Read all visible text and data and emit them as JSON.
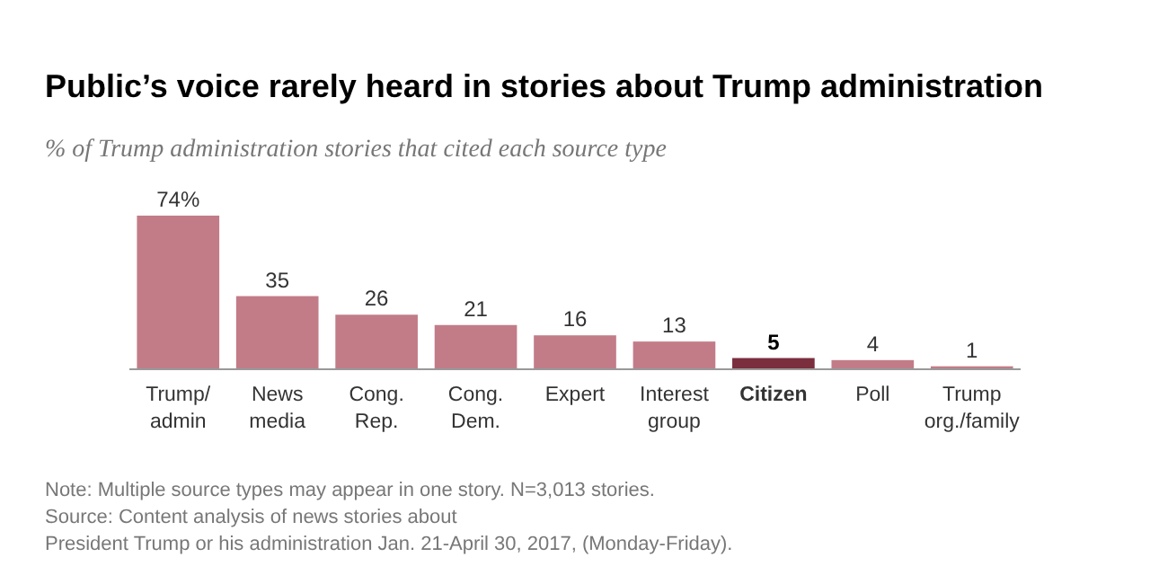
{
  "chart_data": {
    "type": "bar",
    "title": "Public’s voice rarely heard in stories about Trump administration",
    "subtitle": "% of Trump administration stories that cited each source type",
    "categories": [
      "Trump/\nadmin",
      "News\nmedia",
      "Cong.\nRep.",
      "Cong.\nDem.",
      "Expert",
      "Interest\ngroup",
      "Citizen",
      "Poll",
      "Trump\norg./family"
    ],
    "values": [
      74,
      35,
      26,
      21,
      16,
      13,
      5,
      4,
      1
    ],
    "value_labels": [
      "74%",
      "35",
      "26",
      "21",
      "16",
      "13",
      "5",
      "4",
      "1"
    ],
    "colors": [
      "#c27c88",
      "#c27c88",
      "#c27c88",
      "#c27c88",
      "#c27c88",
      "#c27c88",
      "#7a2e3e",
      "#c27c88",
      "#c27c88"
    ],
    "relative": false,
    "annotations": [
      "Note: Multiple source types may appear in one story. N=3,013 stories.",
      "Source: Content analysis of news stories about\nPresident Trump or his administration Jan. 21-April 30, 2017, (Monday-Friday)."
    ]
  }
}
